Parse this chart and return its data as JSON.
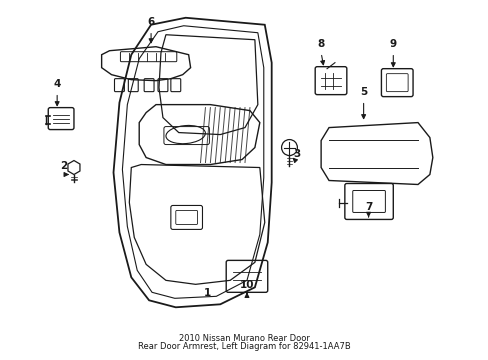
{
  "background_color": "#ffffff",
  "line_color": "#1a1a1a",
  "fig_width": 4.89,
  "fig_height": 3.6,
  "dpi": 100,
  "title_line1": "2010 Nissan Murano Rear Door",
  "title_line2": "Rear Door Armrest, Left Diagram for 82941-1AA7B"
}
